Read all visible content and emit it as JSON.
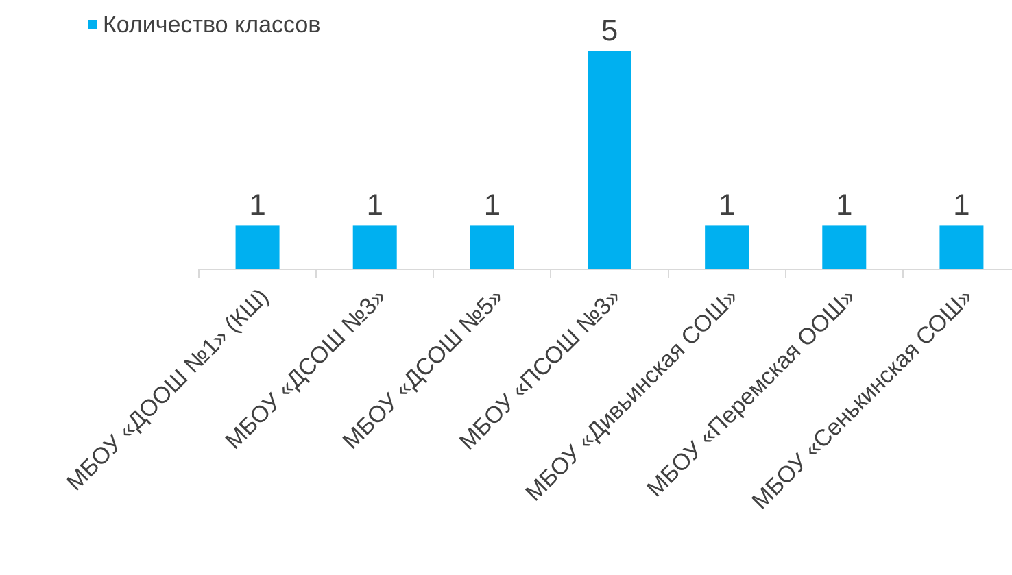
{
  "chart_data": {
    "type": "bar",
    "categories": [
      "МБОУ «ДООШ №1» (КШ)",
      "МБОУ «ДСОШ №3»",
      "МБОУ «ДСОШ №5»",
      "МБОУ «ПСОШ №3»",
      "МБОУ «Дивьинская СОШ»",
      "МБОУ «Перемская ООШ»",
      "МБОУ «Сенькинская СОШ»"
    ],
    "series": [
      {
        "name": "Количество классов",
        "values": [
          1,
          1,
          1,
          5,
          1,
          1,
          1
        ],
        "color": "#00B0F0"
      }
    ],
    "ylim": [
      0,
      5.5
    ],
    "grid": false,
    "legend_position": "top-left",
    "data_labels": true
  }
}
